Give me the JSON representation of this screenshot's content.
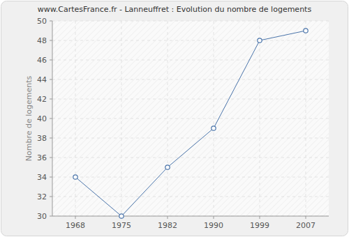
{
  "chart_data": {
    "type": "line",
    "title": "www.CartesFrance.fr - Lanneuffret : Evolution du nombre de logements",
    "y_label": "Nombre de logements",
    "categories": [
      "1968",
      "1975",
      "1982",
      "1990",
      "1999",
      "2007"
    ],
    "values": [
      34,
      30,
      35,
      39,
      48,
      49
    ],
    "color": "#4a74aa",
    "marker": "circle",
    "ylim": [
      30,
      50
    ],
    "yticks": [
      30,
      32,
      34,
      36,
      38,
      40,
      42,
      44,
      46,
      48,
      50
    ],
    "grid": true
  }
}
